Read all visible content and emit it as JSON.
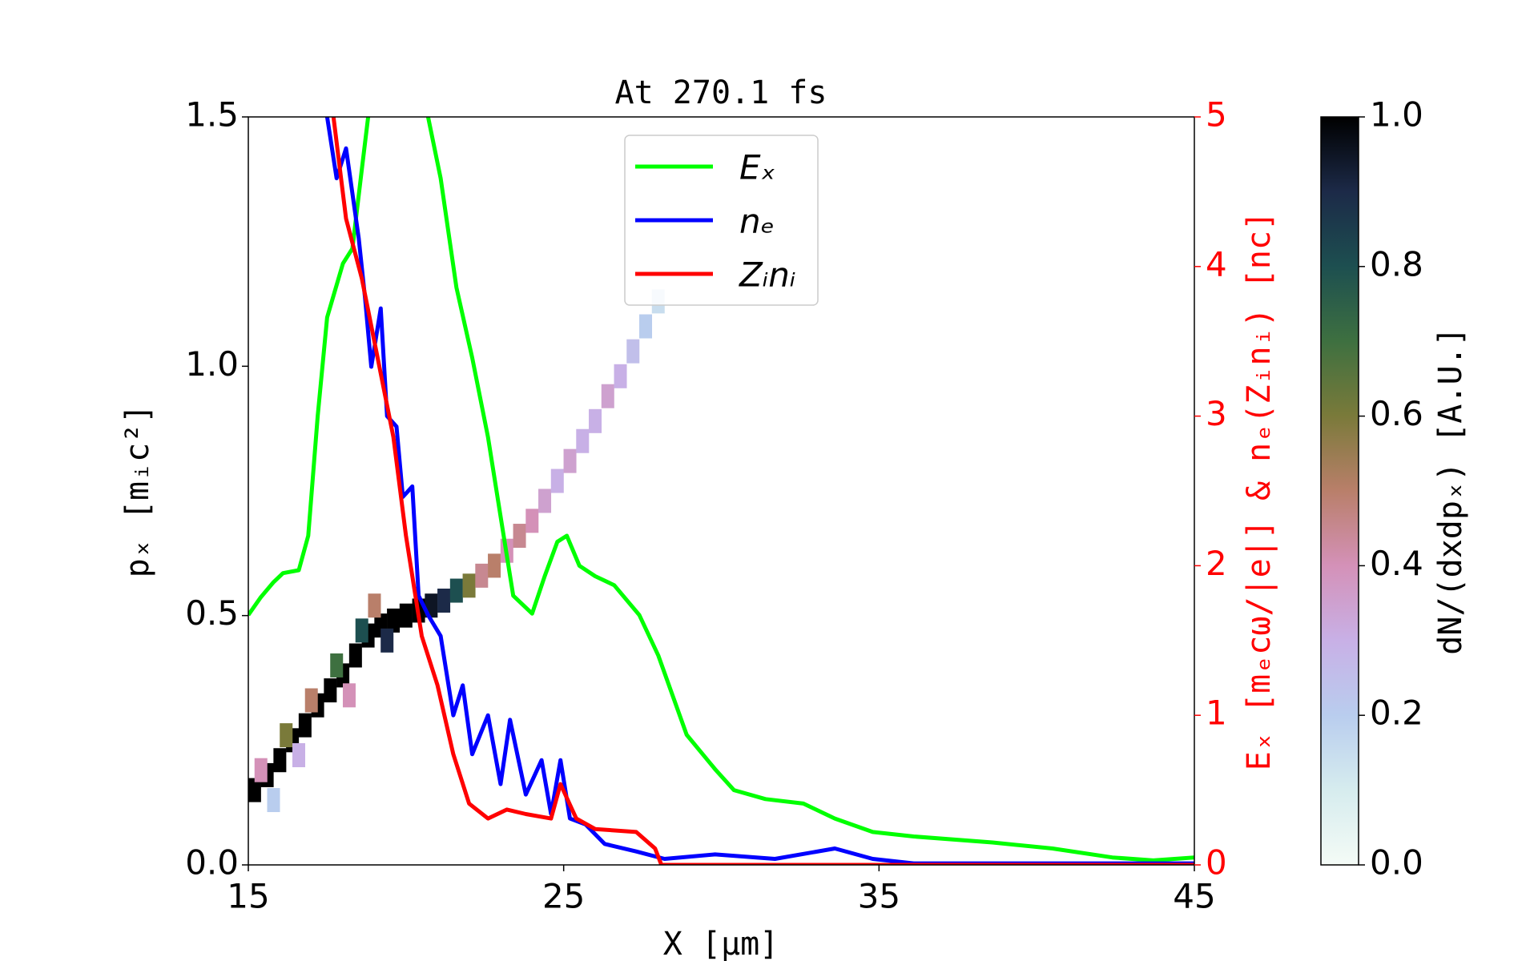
{
  "chart_data": {
    "type": "line",
    "title": "At 270.1 fs",
    "xlabel": "X [μm]",
    "ylabel": "pₓ [mᵢc²]",
    "y2label": "Eₓ [mₑcω/|e|] & nₑ(Zᵢnᵢ) [nc]",
    "xlim": [
      15,
      45
    ],
    "ylim": [
      0,
      1.5
    ],
    "y2lim": [
      0,
      5
    ],
    "xticks": [
      15,
      25,
      35,
      45
    ],
    "yticks": [
      {
        "value": 0,
        "label": "0.0"
      },
      {
        "value": 0.5,
        "label": "0.5"
      },
      {
        "value": 1,
        "label": "1.0"
      },
      {
        "value": 1.5,
        "label": "1.5"
      }
    ],
    "y2ticks": [
      0,
      1,
      2,
      3,
      4,
      5
    ],
    "y2color": "#ff0000",
    "legend": "upper center",
    "series": [
      {
        "name": "Eₓ",
        "color": "#00ff00",
        "axis": "y2",
        "x": [
          15,
          15.4,
          15.8,
          16.1,
          16.6,
          16.9,
          17.2,
          17.5,
          18.0,
          18.3,
          18.6,
          18.8,
          19.8,
          20.7,
          21.1,
          21.6,
          22.1,
          22.6,
          23.0,
          23.4,
          24.0,
          24.4,
          24.8,
          25.1,
          25.5,
          26.0,
          26.6,
          27.4,
          28.0,
          28.9,
          29.8,
          30.4,
          31.4,
          32.6,
          33.6,
          34.8,
          36.1,
          38.6,
          40.5,
          42.4,
          43.7,
          45
        ],
        "values": [
          1.67,
          1.79,
          1.89,
          1.95,
          1.97,
          2.2,
          3.0,
          3.66,
          4.02,
          4.12,
          4.65,
          5.0,
          null,
          5.0,
          4.59,
          3.86,
          3.39,
          2.86,
          2.33,
          1.8,
          1.68,
          1.93,
          2.16,
          2.2,
          2.0,
          1.93,
          1.87,
          1.67,
          1.4,
          0.87,
          0.64,
          0.5,
          0.44,
          0.41,
          0.31,
          0.22,
          0.19,
          0.15,
          0.11,
          0.05,
          0.03,
          0.05
        ]
      },
      {
        "name": "nₑ",
        "color": "#0000ff",
        "axis": "y2",
        "x": [
          17.5,
          17.8,
          18.1,
          18.5,
          18.7,
          18.9,
          19.2,
          19.4,
          19.7,
          19.9,
          20.2,
          20.4,
          20.7,
          21.1,
          21.5,
          21.8,
          22.1,
          22.6,
          23.0,
          23.3,
          23.8,
          24.3,
          24.6,
          24.9,
          25.2,
          25.7,
          26.3,
          27.3,
          28.2,
          29.8,
          31.7,
          33.6,
          34.8,
          36.1,
          45
        ],
        "values": [
          5.0,
          4.59,
          4.79,
          4.19,
          3.79,
          3.33,
          3.72,
          3.0,
          2.93,
          2.46,
          2.53,
          1.8,
          1.67,
          1.53,
          1.0,
          1.2,
          0.74,
          1.0,
          0.54,
          0.97,
          0.47,
          0.7,
          0.34,
          0.7,
          0.31,
          0.27,
          0.14,
          0.09,
          0.04,
          0.07,
          0.04,
          0.11,
          0.04,
          0.01,
          0.01
        ]
      },
      {
        "name": "Zᵢnᵢ",
        "color": "#ff0000",
        "axis": "y2",
        "x": [
          17.7,
          18.1,
          18.6,
          19.1,
          19.6,
          20.0,
          20.5,
          21.0,
          21.5,
          22.0,
          22.6,
          23.2,
          23.8,
          24.6,
          24.9,
          25.4,
          26.0,
          27.3,
          27.9,
          28.1,
          45
        ],
        "values": [
          5.0,
          4.32,
          3.92,
          3.39,
          2.86,
          2.2,
          1.53,
          1.2,
          0.74,
          0.41,
          0.31,
          0.37,
          0.34,
          0.31,
          0.54,
          0.31,
          0.24,
          0.22,
          0.11,
          0,
          0
        ]
      }
    ],
    "heatmap": {
      "x": [
        15.2,
        15.6,
        16.0,
        16.4,
        16.8,
        17.2,
        17.6,
        18.0,
        18.4,
        18.8,
        19.2,
        19.6,
        20.0,
        20.4,
        20.8,
        21.2,
        21.6,
        22.0,
        15.4,
        16.2,
        17.0,
        17.8,
        18.6,
        19.0,
        19.4,
        16.6,
        18.2,
        15.8,
        22.4,
        22.8,
        23.2,
        23.6,
        24.0,
        24.4,
        24.8,
        25.2,
        25.6,
        26.0,
        26.4,
        26.8,
        27.2,
        27.6,
        28.0
      ],
      "y": [
        0.15,
        0.18,
        0.21,
        0.25,
        0.28,
        0.32,
        0.35,
        0.38,
        0.42,
        0.46,
        0.48,
        0.49,
        0.5,
        0.51,
        0.52,
        0.53,
        0.55,
        0.56,
        0.19,
        0.26,
        0.33,
        0.4,
        0.47,
        0.52,
        0.45,
        0.22,
        0.34,
        0.13,
        0.58,
        0.6,
        0.63,
        0.66,
        0.69,
        0.73,
        0.77,
        0.81,
        0.85,
        0.89,
        0.94,
        0.98,
        1.03,
        1.08,
        1.13
      ],
      "values": [
        1,
        1,
        1,
        1,
        1,
        1,
        1,
        1,
        1,
        1,
        1,
        1,
        1,
        1,
        0.95,
        0.9,
        0.8,
        0.6,
        0.4,
        0.6,
        0.5,
        0.7,
        0.8,
        0.5,
        0.9,
        0.3,
        0.4,
        0.2,
        0.45,
        0.5,
        0.4,
        0.45,
        0.4,
        0.35,
        0.3,
        0.35,
        0.3,
        0.3,
        0.35,
        0.3,
        0.25,
        0.2,
        0.15
      ]
    },
    "colorbar": {
      "label": "dN/(dxdpₓ) [A.U.]",
      "lim": [
        0,
        1
      ],
      "ticks": [
        {
          "value": 0,
          "label": "0.0"
        },
        {
          "value": 0.2,
          "label": "0.2"
        },
        {
          "value": 0.4,
          "label": "0.4"
        },
        {
          "value": 0.6,
          "label": "0.6"
        },
        {
          "value": 0.8,
          "label": "0.8"
        },
        {
          "value": 1,
          "label": "1.0"
        }
      ],
      "colormap": [
        "#f4fbf6",
        "#d6ecee",
        "#b9cdee",
        "#c8b0e6",
        "#d491b8",
        "#b97f6a",
        "#7a7a3a",
        "#3e7040",
        "#1d4f50",
        "#1c2a48",
        "#000000"
      ]
    }
  }
}
